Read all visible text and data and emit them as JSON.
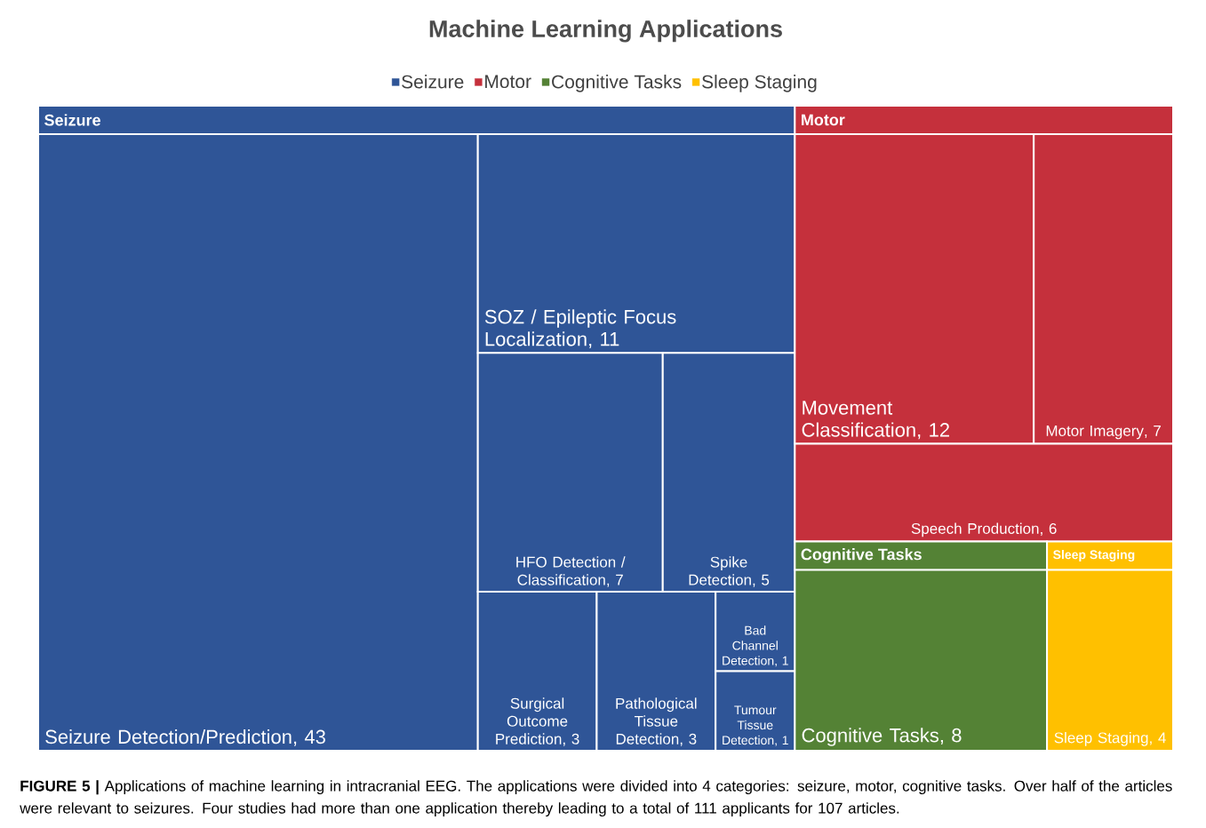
{
  "chart_data": {
    "type": "other",
    "title": "Machine Learning Applications",
    "legend": "top",
    "categories": [
      "Seizure Detection/Prediction",
      "SOZ / Epileptic Focus Localization",
      "HFO Detection / Classification",
      "Spike Detection",
      "Surgical Outcome Prediction",
      "Pathological Tissue Detection",
      "Bad Channel Detection",
      "Tumour Tissue Detection",
      "Movement Classification",
      "Motor Imagery",
      "Speech Production",
      "Cognitive Tasks",
      "Sleep Staging"
    ],
    "series": [
      {
        "name": "Seizure",
        "color": "#2f5597",
        "values": [
          43,
          11,
          7,
          5,
          3,
          3,
          1,
          1,
          null,
          null,
          null,
          null,
          null
        ],
        "value_labels": [
          ", 43",
          ", 11",
          ", 7",
          ", 5",
          ", 3",
          ", 3",
          ", 1",
          ", 1",
          null,
          null,
          null,
          null,
          null
        ]
      },
      {
        "name": "Motor",
        "color": "#c5303c",
        "values": [
          null,
          null,
          null,
          null,
          null,
          null,
          null,
          null,
          12,
          7,
          6,
          null,
          null
        ],
        "value_labels": [
          null,
          null,
          null,
          null,
          null,
          null,
          null,
          null,
          ", 12",
          ", 7",
          ", 6",
          null,
          null
        ]
      },
      {
        "name": "Cognitive Tasks",
        "color": "#548235",
        "values": [
          null,
          null,
          null,
          null,
          null,
          null,
          null,
          null,
          null,
          null,
          null,
          8,
          null
        ],
        "value_labels": [
          null,
          null,
          null,
          null,
          null,
          null,
          null,
          null,
          null,
          null,
          null,
          ", 8",
          null
        ]
      },
      {
        "name": "Sleep Staging",
        "color": "#ffc000",
        "values": [
          null,
          null,
          null,
          null,
          null,
          null,
          null,
          null,
          null,
          null,
          null,
          null,
          4
        ],
        "value_labels": [
          null,
          null,
          null,
          null,
          null,
          null,
          null,
          null,
          null,
          null,
          null,
          null,
          ", 4"
        ]
      }
    ],
    "annotations": [
      "**FIGURE 5 |** Applications of machine learning in intracranial EEG. The applications were divided into 4 categories: seizure, motor, cognitive tasks. Over half of the articles were relevant to seizures. Four studies had more than one application thereby leading to a total of 111 applicants for 107 articles."
    ]
  }
}
